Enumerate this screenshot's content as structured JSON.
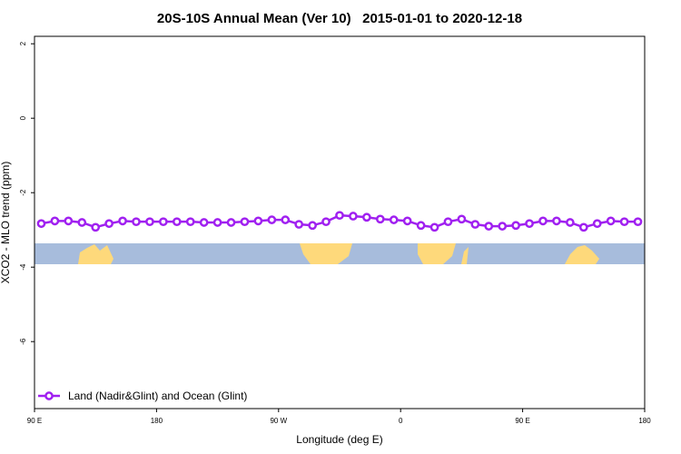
{
  "chart_data": {
    "type": "line",
    "title": "20S-10S Annual Mean (Ver 10)   2015-01-01 to 2020-12-18",
    "x_label": "Longitude (deg E)",
    "y_label": "XCO2 - MLO trend (ppm)",
    "xlim": [
      90,
      540
    ],
    "ylim": [
      -7.8,
      2.2
    ],
    "xticks": [
      {
        "value": 90,
        "label": "90 E"
      },
      180,
      {
        "value": 270,
        "label": "90 W"
      },
      {
        "value": 360,
        "label": "0"
      },
      {
        "value": 450,
        "label": "90 E"
      },
      {
        "value": 540,
        "label": "180"
      }
    ],
    "yticks": [
      2,
      0,
      -2,
      -4,
      -6
    ],
    "legend_position": "bottom-left",
    "x": [
      95,
      105,
      115,
      125,
      135,
      145,
      155,
      165,
      175,
      185,
      195,
      205,
      215,
      225,
      235,
      245,
      255,
      265,
      275,
      285,
      295,
      305,
      315,
      325,
      335,
      345,
      355,
      365,
      375,
      385,
      395,
      405,
      415,
      425,
      435,
      445,
      455,
      465,
      475,
      485,
      495,
      505,
      515,
      525,
      535
    ],
    "series": [
      {
        "name": "Land (Nadir&Glint) and Ocean (Glint)",
        "color": "#a020f0",
        "values": [
          -2.83,
          -2.76,
          -2.76,
          -2.8,
          -2.93,
          -2.83,
          -2.76,
          -2.78,
          -2.78,
          -2.78,
          -2.78,
          -2.78,
          -2.8,
          -2.8,
          -2.8,
          -2.78,
          -2.76,
          -2.73,
          -2.73,
          -2.85,
          -2.88,
          -2.78,
          -2.61,
          -2.63,
          -2.66,
          -2.71,
          -2.73,
          -2.76,
          -2.88,
          -2.93,
          -2.78,
          -2.71,
          -2.85,
          -2.9,
          -2.9,
          -2.88,
          -2.83,
          -2.76,
          -2.76,
          -2.8,
          -2.93,
          -2.83,
          -2.76,
          -2.78,
          -2.78
        ]
      }
    ]
  }
}
